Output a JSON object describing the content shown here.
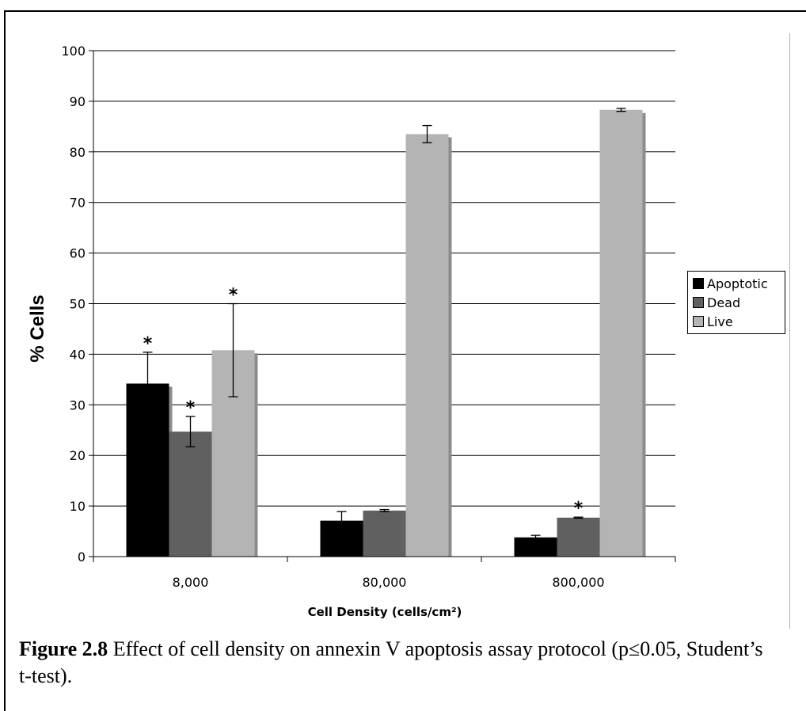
{
  "chart_data": {
    "type": "bar",
    "title": "",
    "xlabel": "Cell Density (cells/cm²)",
    "ylabel": "% Cells",
    "ylim": [
      0,
      100
    ],
    "yticks": [
      0,
      10,
      20,
      30,
      40,
      50,
      60,
      70,
      80,
      90,
      100
    ],
    "ytick_labels": [
      "0",
      "10",
      "20",
      "30",
      "40",
      "50",
      "60",
      "70",
      "80",
      "90",
      "100"
    ],
    "categories": [
      "8,000",
      "80,000",
      "800,000"
    ],
    "grid": true,
    "legend_position": "right",
    "series": [
      {
        "name": "Apoptotic",
        "color": "#000000",
        "values": [
          34.2,
          7.1,
          3.8
        ],
        "error": [
          6.2,
          1.8,
          0.4
        ],
        "significant": [
          true,
          false,
          false
        ]
      },
      {
        "name": "Dead",
        "color": "#606060",
        "values": [
          24.7,
          9.1,
          7.7
        ],
        "error": [
          3.0,
          0.2,
          0.1
        ],
        "significant": [
          true,
          false,
          true
        ]
      },
      {
        "name": "Live",
        "color": "#b4b4b4",
        "values": [
          40.8,
          83.5,
          88.3
        ],
        "error": [
          9.2,
          1.7,
          0.3
        ],
        "significant": [
          true,
          false,
          false
        ]
      }
    ],
    "significance_marker": "*"
  },
  "caption": {
    "label": "Figure 2.8",
    "text": " Effect of cell density on annexin V apoptosis assay protocol (p≤0.05, Student’s t-test)."
  }
}
